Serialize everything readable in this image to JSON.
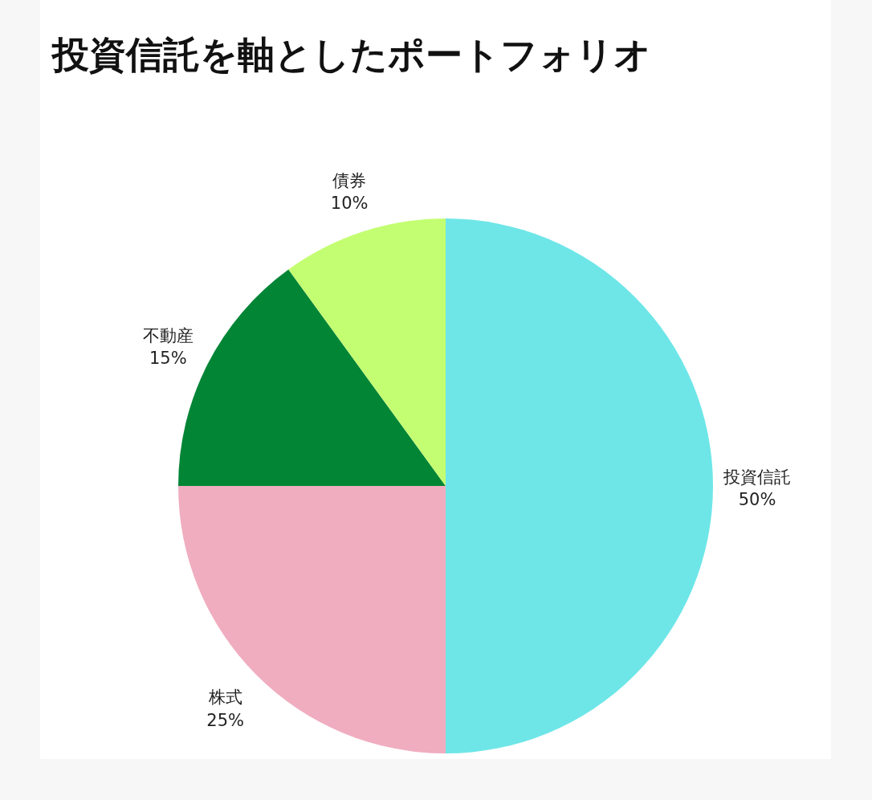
{
  "chart_data": {
    "type": "pie",
    "title": "投資信託を軸としたポートフォリオ",
    "categories": [
      "投資信託",
      "株式",
      "不動産",
      "債券"
    ],
    "values": [
      50,
      25,
      15,
      10
    ],
    "colors": [
      "#6ee6e8",
      "#f0adc0",
      "#038536",
      "#c3fe72"
    ],
    "value_labels": [
      "50%",
      "25%",
      "15%",
      "10%"
    ]
  }
}
